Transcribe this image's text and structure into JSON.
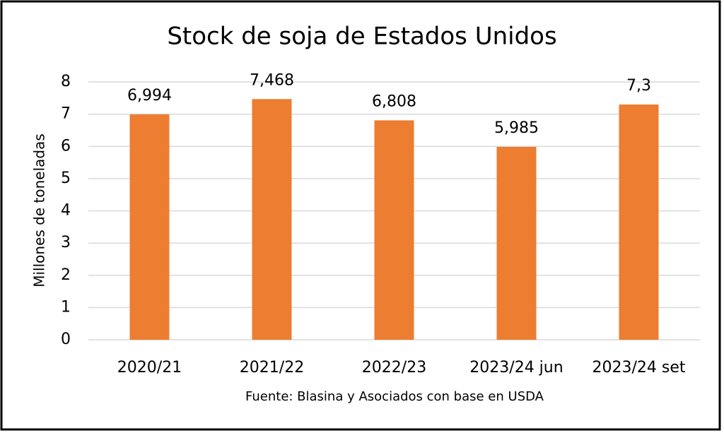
{
  "chart_data": {
    "type": "bar",
    "title": "Stock de soja de Estados Unidos",
    "y_label": "Millones de toneladas",
    "note": "Fuente: Blasina y Asociados con base en USDA",
    "categories": [
      "2020/21",
      "2021/22",
      "2022/23",
      "2023/24 jun",
      "2023/24 set"
    ],
    "values": [
      6.994,
      7.468,
      6.808,
      5.985,
      7.3
    ],
    "value_labels": [
      "6,994",
      "7,468",
      "6,808",
      "5,985",
      "7,3"
    ],
    "color": "#ed7d31",
    "ylim": [
      0,
      8
    ],
    "yticks": [
      0,
      1,
      2,
      3,
      4,
      5,
      6,
      7,
      8
    ],
    "grid": true
  }
}
